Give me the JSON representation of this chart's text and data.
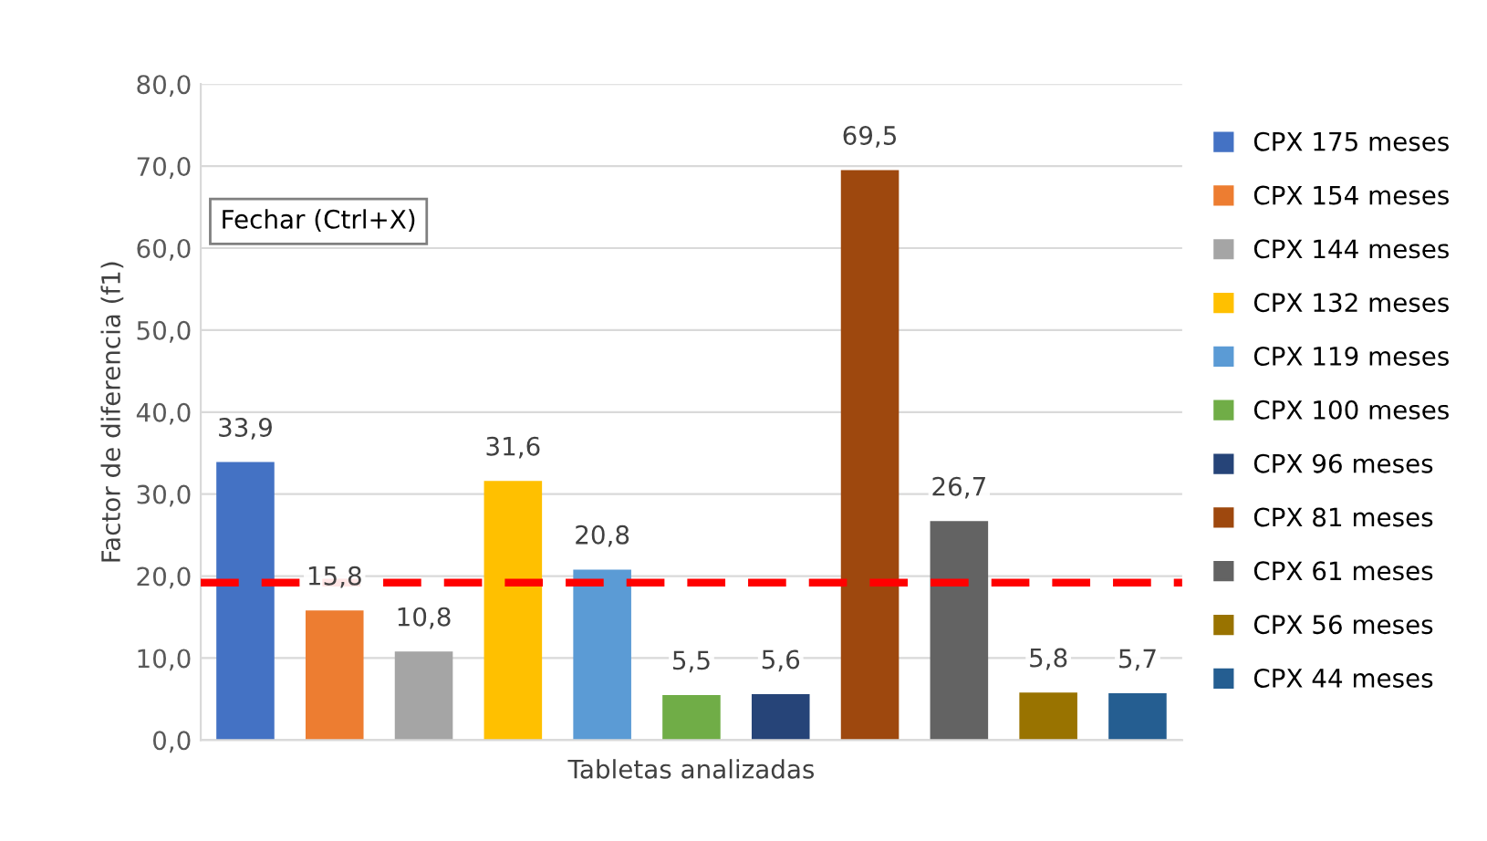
{
  "chart_data": {
    "type": "bar",
    "categories": [
      null
    ],
    "xlabel": "Tabletas analizadas",
    "ylabel": "Factor de diferencia (f1)",
    "ylim": [
      0,
      80
    ],
    "yticks": [
      {
        "value": 0,
        "label": "0,0"
      },
      {
        "value": 10,
        "label": "10,0"
      },
      {
        "value": 20,
        "label": "20,0"
      },
      {
        "value": 30,
        "label": "30,0"
      },
      {
        "value": 40,
        "label": "40,0"
      },
      {
        "value": 50,
        "label": "50,0"
      },
      {
        "value": 60,
        "label": "60,0"
      },
      {
        "value": 70,
        "label": "70,0"
      },
      {
        "value": 80,
        "label": "80,0"
      }
    ],
    "grid": "y",
    "legend": "right",
    "ref_lines": [
      {
        "axis": "y",
        "value": 19.2,
        "label": null,
        "color": "#ff0000",
        "line_style": "dashed"
      }
    ],
    "annotations": [
      "Fechar (Ctrl+X)"
    ],
    "series": [
      {
        "name": "CPX 175 meses",
        "color": "#4472c4",
        "values": [
          33.9
        ],
        "value_labels": [
          "33,9"
        ]
      },
      {
        "name": "CPX 154 meses",
        "color": "#ed7d31",
        "values": [
          15.8
        ],
        "value_labels": [
          "15,8"
        ]
      },
      {
        "name": "CPX 144 meses",
        "color": "#a5a5a5",
        "values": [
          10.8
        ],
        "value_labels": [
          "10,8"
        ]
      },
      {
        "name": "CPX 132 meses",
        "color": "#ffc000",
        "values": [
          31.6
        ],
        "value_labels": [
          "31,6"
        ]
      },
      {
        "name": "CPX 119 meses",
        "color": "#5b9bd5",
        "values": [
          20.8
        ],
        "value_labels": [
          "20,8"
        ]
      },
      {
        "name": "CPX 100 meses",
        "color": "#70ad47",
        "values": [
          5.5
        ],
        "value_labels": [
          "5,5"
        ]
      },
      {
        "name": "CPX 96 meses",
        "color": "#264478",
        "values": [
          5.6
        ],
        "value_labels": [
          "5,6"
        ]
      },
      {
        "name": "CPX 81 meses",
        "color": "#9e480e",
        "values": [
          69.5
        ],
        "value_labels": [
          "69,5"
        ]
      },
      {
        "name": "CPX 61 meses",
        "color": "#636363",
        "values": [
          26.7
        ],
        "value_labels": [
          "26,7"
        ]
      },
      {
        "name": "CPX 56 meses",
        "color": "#997300",
        "values": [
          5.8
        ],
        "value_labels": [
          "5,8"
        ]
      },
      {
        "name": "CPX 44 meses",
        "color": "#255e91",
        "values": [
          5.7
        ],
        "value_labels": [
          "5,7"
        ]
      }
    ]
  }
}
